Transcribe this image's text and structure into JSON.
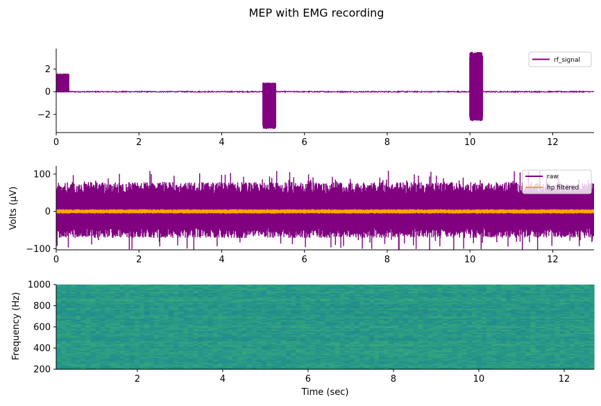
{
  "figure": {
    "title": "MEP with EMG recording"
  },
  "chart_data": [
    {
      "type": "line",
      "name": "rf_signal panel",
      "xlim": [
        0,
        13
      ],
      "ylim": [
        -3.6,
        3.8
      ],
      "xticks": [
        0,
        2,
        4,
        6,
        8,
        10,
        12
      ],
      "yticks": [
        -2,
        0,
        2
      ],
      "xlabel": "",
      "ylabel": "",
      "grid": false,
      "legend": {
        "position": "top-right",
        "entries": [
          "rf_signal"
        ]
      },
      "series": [
        {
          "name": "rf_signal",
          "color": "#800080",
          "baseline_noise": 0.05,
          "bursts": [
            {
              "start": 0.0,
              "end": 0.3,
              "min": -0.05,
              "max": 1.6
            },
            {
              "start": 5.0,
              "end": 5.3,
              "min": -3.3,
              "max": 0.8
            },
            {
              "start": 10.0,
              "end": 10.3,
              "min": -2.6,
              "max": 3.5
            }
          ]
        }
      ]
    },
    {
      "type": "line",
      "name": "EMG panel",
      "xlim": [
        0,
        13
      ],
      "ylim": [
        -103,
        122
      ],
      "xticks": [
        0,
        2,
        4,
        6,
        8,
        10,
        12
      ],
      "yticks": [
        -100,
        0,
        100
      ],
      "xlabel": "",
      "ylabel": "Volts (μV)",
      "grid": false,
      "legend": {
        "position": "top-right",
        "entries": [
          "raw",
          "hp filtered"
        ]
      },
      "series": [
        {
          "name": "raw",
          "color": "#800080",
          "min": -90,
          "max": 110,
          "typical_peak": 75
        },
        {
          "name": "hp filtered",
          "color": "#ffa500",
          "min": -6,
          "max": 6
        }
      ]
    },
    {
      "type": "heatmap",
      "name": "spectrogram panel",
      "xlim": [
        0.1,
        12.7
      ],
      "ylim": [
        200,
        1000
      ],
      "xticks": [
        2,
        4,
        6,
        8,
        10,
        12
      ],
      "yticks": [
        200,
        400,
        600,
        800,
        1000
      ],
      "xlabel": "Time (sec)",
      "ylabel": "Frequency (Hz)",
      "colormap": "viridis",
      "value_range": [
        0.45,
        0.62
      ]
    }
  ]
}
